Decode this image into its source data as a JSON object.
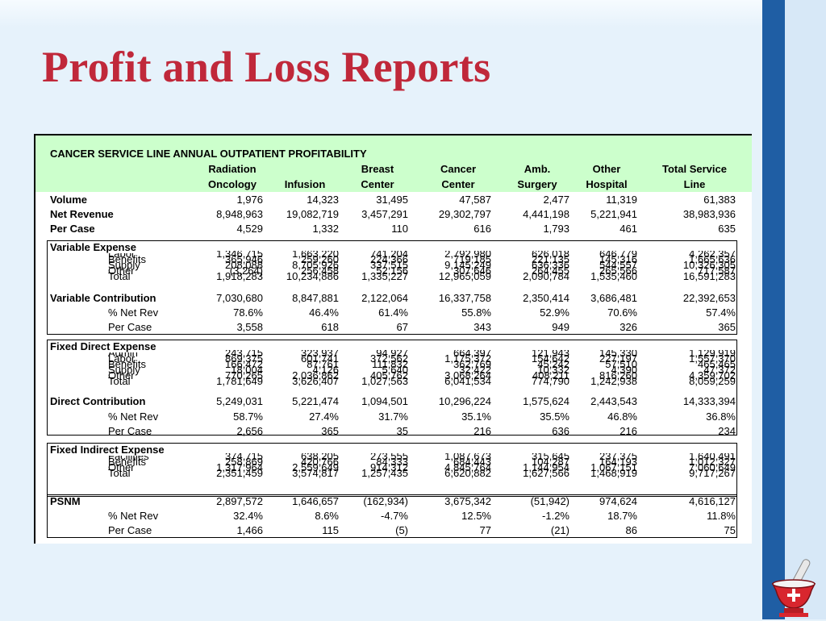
{
  "slide": {
    "title": "Profit and Loss Reports"
  },
  "table": {
    "title": "CANCER SERVICE LINE ANNUAL OUTPATIENT PROFITABILITY",
    "columns": [
      {
        "l1": "Radiation",
        "l2": "Oncology"
      },
      {
        "l1": "",
        "l2": "Infusion"
      },
      {
        "l1": "Breast",
        "l2": "Center"
      },
      {
        "l1": "Cancer",
        "l2": "Center"
      },
      {
        "l1": "Amb.",
        "l2": "Surgery"
      },
      {
        "l1": "Other",
        "l2": "Hospital"
      },
      {
        "l1": "Total Service",
        "l2": "Line"
      }
    ],
    "summary": [
      {
        "label": "Volume",
        "values": [
          "1,976",
          "14,323",
          "31,495",
          "47,587",
          "2,477",
          "11,319",
          "61,383"
        ]
      },
      {
        "label": "Net Revenue",
        "values": [
          "8,948,963",
          "19,082,719",
          "3,457,291",
          "29,302,797",
          "4,441,198",
          "5,221,941",
          "38,983,936"
        ]
      },
      {
        "label": "Per Case",
        "values": [
          "4,529",
          "1,332",
          "110",
          "616",
          "1,793",
          "461",
          "635"
        ]
      }
    ],
    "variable": {
      "title": "Variable Expense",
      "detail": [
        {
          "label": "Labor",
          "values": [
            "1,346,715",
            "1,663,220",
            "741,204",
            "2,792,980",
            "626,018",
            "646,779",
            "4,262,357"
          ]
        },
        {
          "label": "Benefits",
          "values": [
            "365,946",
            "259,260",
            "224,366",
            "719,185",
            "221,135",
            "145,316",
            "1,665,636"
          ]
        },
        {
          "label": "Supply",
          "values": [
            "208,088",
            "8,705,926",
            "337,515",
            "9,145,249",
            "636,336",
            "544,557",
            "10,326,305"
          ]
        },
        {
          "label": "Other",
          "values": [
            "(3,264)",
            "256,458",
            "52,156",
            "307,646",
            "264,455",
            "265,566",
            "717,587"
          ]
        },
        {
          "label": "Total",
          "values": [
            "1,918,283",
            "10,234,886",
            "1,335,227",
            "12,965,059",
            "2,090,784",
            "1,535,460",
            "16,591,283"
          ]
        }
      ],
      "contribution": {
        "label": "Variable Contribution",
        "values": [
          "7,030,680",
          "8,847,881",
          "2,122,064",
          "16,337,758",
          "2,350,414",
          "3,686,481",
          "22,392,653"
        ]
      },
      "pct": {
        "label": "% Net Rev",
        "values": [
          "78.6%",
          "46.4%",
          "61.4%",
          "55.8%",
          "52.9%",
          "70.6%",
          "57.4%"
        ]
      },
      "per_case": {
        "label": "Per Case",
        "values": [
          "3,558",
          "618",
          "67",
          "343",
          "949",
          "326",
          "365"
        ]
      }
    },
    "fixed_direct": {
      "title": "Fixed Direct Expense",
      "detail": [
        {
          "label": "Admin",
          "values": [
            "243,715",
            "323,937",
            "94,927",
            "664,397",
            "121,943",
            "145,330",
            "1,129,919"
          ]
        },
        {
          "label": "Labor",
          "values": [
            "869,375",
            "601,741",
            "372,562",
            "1,175,372",
            "154,642",
            "227,197",
            "1,557,370"
          ]
        },
        {
          "label": "Benefits",
          "values": [
            "166,472",
            "87,761",
            "111,832",
            "362,769",
            "45,242",
            "57,510",
            "465,465"
          ]
        },
        {
          "label": "Supply",
          "values": [
            "18,004",
            "4,126",
            "5,640",
            "32,422",
            "10,332",
            "4,390",
            "47,372"
          ]
        },
        {
          "label": "Other",
          "values": [
            "770,265",
            "2,036,862",
            "405,762",
            "3,068,264",
            "408,211",
            "816,260",
            "4,359,702"
          ]
        },
        {
          "label": "Total",
          "values": [
            "1,781,649",
            "3,626,407",
            "1,027,563",
            "6,041,534",
            "774,790",
            "1,242,938",
            "8,059,259"
          ]
        }
      ],
      "contribution": {
        "label": "Direct Contribution",
        "values": [
          "5,249,031",
          "5,221,474",
          "1,094,501",
          "10,296,224",
          "1,575,624",
          "2,443,543",
          "14,333,394"
        ]
      },
      "pct": {
        "label": "% Net Rev",
        "values": [
          "58.7%",
          "27.4%",
          "31.7%",
          "35.1%",
          "35.5%",
          "46.8%",
          "36.8%"
        ]
      },
      "per_case": {
        "label": "Per Case",
        "values": [
          "2,656",
          "365",
          "35",
          "216",
          "636",
          "216",
          "234"
        ]
      }
    },
    "fixed_indirect": {
      "title": "Fixed Indirect Expense",
      "detail": [
        {
          "label": "Facilities",
          "values": [
            "374,715",
            "638,205",
            "273,555",
            "1,087,673",
            "315,645",
            "237,375",
            "1,640,491"
          ]
        },
        {
          "label": "Benefits",
          "values": [
            "258,869",
            "420,766",
            "84,333",
            "684,443",
            "104,287",
            "164,193",
            "1,012,327"
          ]
        },
        {
          "label": "Other",
          "values": [
            "1,317,964",
            "2,559,649",
            "914,312",
            "4,845,764",
            "1,144,954",
            "1,067,151",
            "7,060,649"
          ]
        },
        {
          "label": "Total",
          "values": [
            "2,351,459",
            "3,574,817",
            "1,257,435",
            "6,620,882",
            "1,627,566",
            "1,468,919",
            "9,717,267"
          ]
        }
      ]
    },
    "psnm": {
      "label": "PSNM",
      "values": [
        "2,897,572",
        "1,646,657",
        "(162,934)",
        "3,675,342",
        "(51,942)",
        "974,624",
        "4,616,127"
      ],
      "pct": {
        "label": "% Net Rev",
        "values": [
          "32.4%",
          "8.6%",
          "-4.7%",
          "12.5%",
          "-1.2%",
          "18.7%",
          "11.8%"
        ]
      },
      "per_case": {
        "label": "Per Case",
        "values": [
          "1,466",
          "115",
          "(5)",
          "77",
          "(21)",
          "86",
          "75"
        ]
      }
    }
  },
  "colors": {
    "title": "#c0283a",
    "header_band": "#ccffcc",
    "accent_bar": "#1f5ea4",
    "background": "#e6f2fb"
  },
  "icons": {
    "corner": "mortar-and-pestle-icon"
  }
}
